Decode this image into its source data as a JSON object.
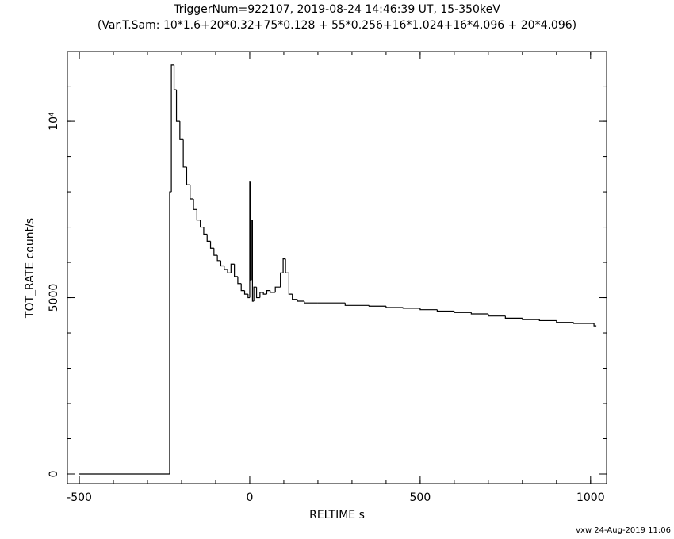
{
  "chart_data": {
    "type": "step",
    "title": "TriggerNum=922107, 2019-08-24 14:46:39 UT, 15-350keV",
    "subtitle": "(Var.T.Sam: 10*1.6+20*0.32+75*0.128  +  55*0.256+16*1.024+16*4.096  +  20*4.096)",
    "x_label": "RELTIME  s",
    "y_label": "TOT_RATE  count/s",
    "footnote": "vxw 24-Aug-2019 11:06",
    "color": "#000000",
    "xlim": [
      -535,
      1047
    ],
    "ylim": [
      -270,
      11980
    ],
    "xticks": [
      -500,
      0,
      500,
      1000
    ],
    "yticks": [
      0,
      5000,
      {
        "value": 10000,
        "label": "10⁴"
      }
    ],
    "xticks_minor": [
      -500,
      -400,
      -300,
      -200,
      -100,
      0,
      100,
      200,
      300,
      400,
      500,
      600,
      700,
      800,
      900,
      1000
    ],
    "yticks_minor": [
      0,
      1000,
      2000,
      3000,
      4000,
      5000,
      6000,
      7000,
      8000,
      9000,
      10000,
      11000
    ],
    "x": [
      -500,
      -235,
      -230,
      -222,
      -215,
      -205,
      -195,
      -185,
      -175,
      -165,
      -155,
      -145,
      -135,
      -125,
      -115,
      -105,
      -95,
      -85,
      -75,
      -65,
      -55,
      -45,
      -35,
      -25,
      -15,
      -5,
      0,
      2,
      5,
      8,
      12,
      20,
      30,
      40,
      50,
      60,
      75,
      90,
      98,
      105,
      115,
      125,
      140,
      160,
      200,
      280,
      350,
      400,
      450,
      500,
      550,
      600,
      650,
      700,
      750,
      800,
      850,
      900,
      950,
      1010
    ],
    "values": [
      0,
      8000,
      11600,
      10900,
      10000,
      9500,
      8700,
      8200,
      7800,
      7500,
      7200,
      7000,
      6800,
      6600,
      6400,
      6200,
      6050,
      5900,
      5800,
      5700,
      5950,
      5600,
      5400,
      5200,
      5100,
      5000,
      8300,
      5500,
      7200,
      4900,
      5300,
      5000,
      5150,
      5100,
      5200,
      5150,
      5300,
      5700,
      6100,
      5700,
      5100,
      4950,
      4900,
      4850,
      4850,
      4780,
      4760,
      4720,
      4700,
      4660,
      4620,
      4580,
      4540,
      4480,
      4420,
      4380,
      4350,
      4300,
      4270,
      4200
    ]
  }
}
